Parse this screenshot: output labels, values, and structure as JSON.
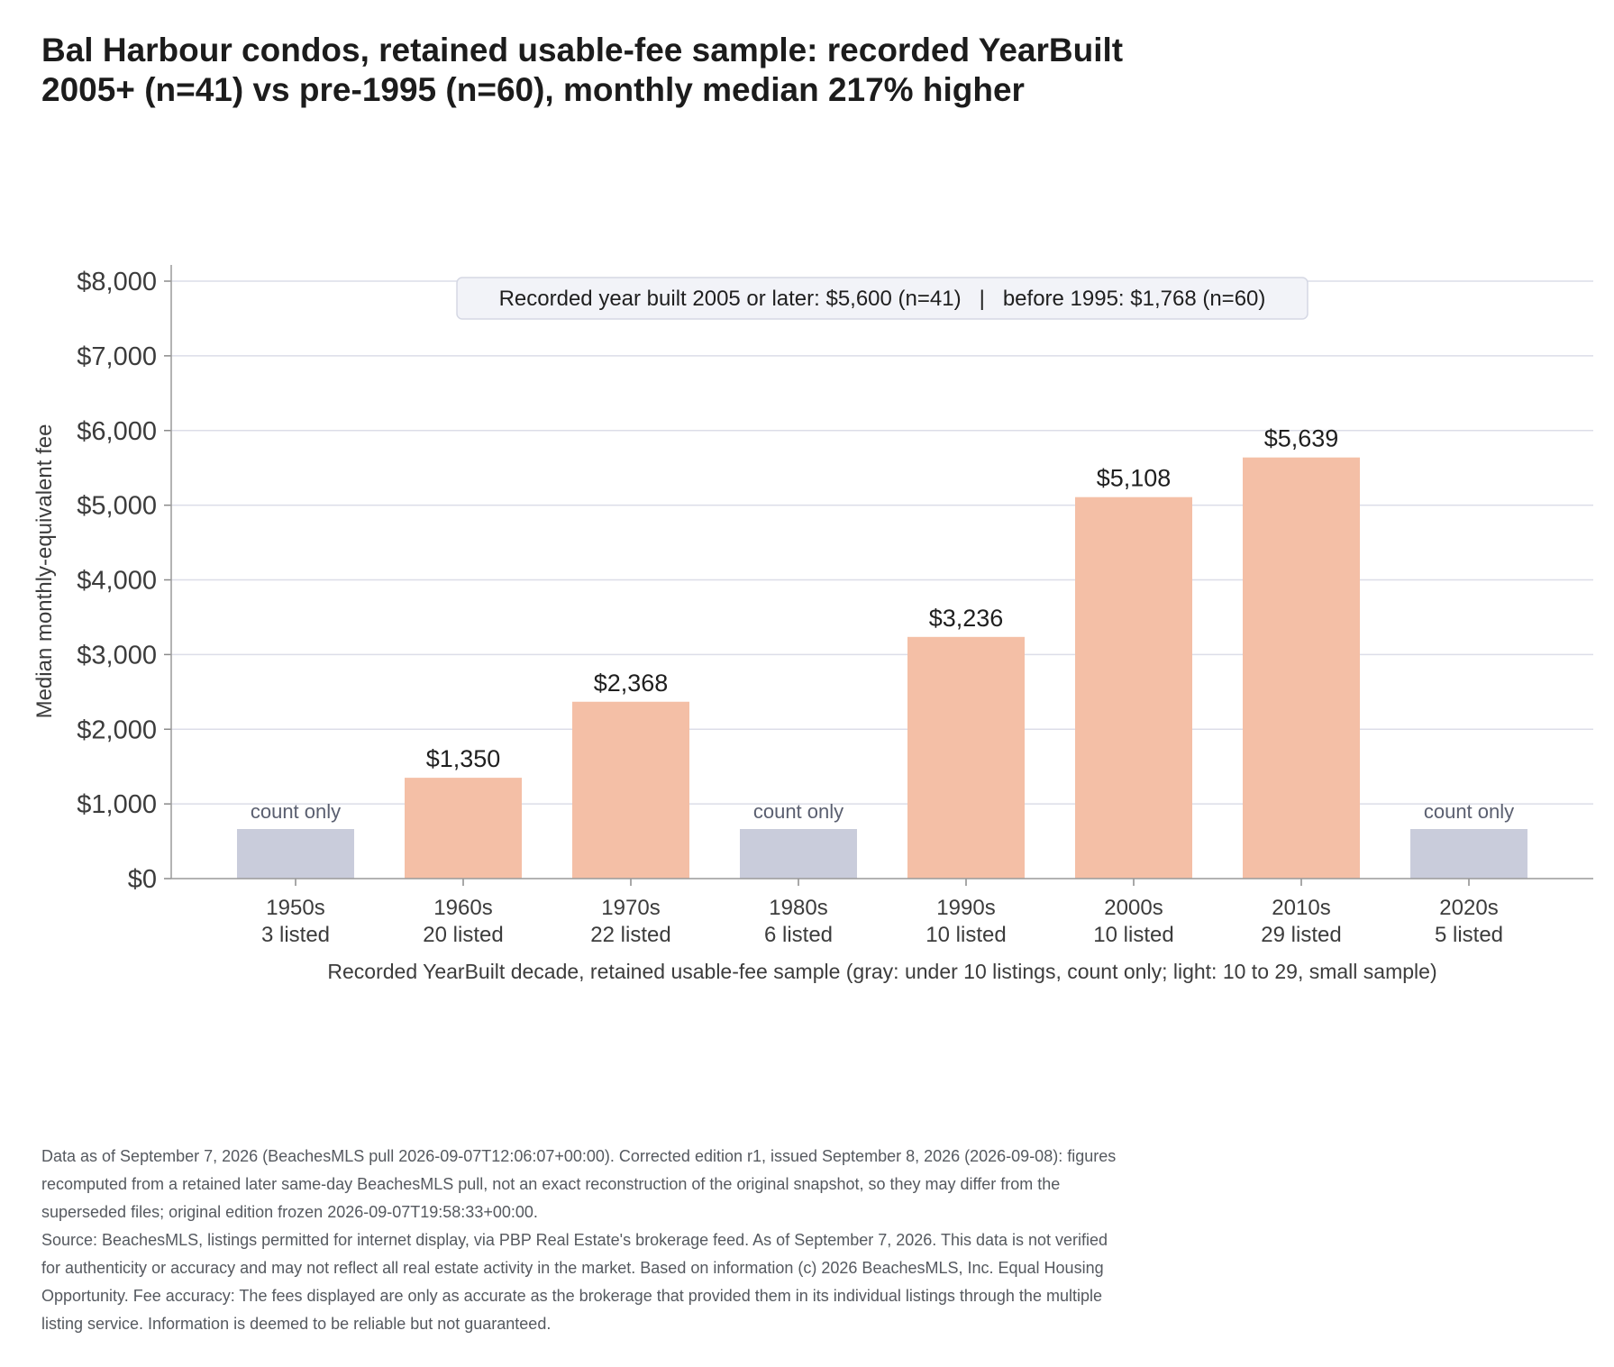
{
  "title": {
    "line1": "Bal Harbour condos, retained usable-fee sample: recorded YearBuilt",
    "line2": "2005+ (n=41) vs pre-1995 (n=60), monthly median 217% higher"
  },
  "summary_box": "Recorded year built 2005 or later: $5,600 (n=41)   |   before 1995: $1,768 (n=60)",
  "chart_data": {
    "type": "bar",
    "title": "Bal Harbour condos, retained usable-fee sample: recorded YearBuilt 2005+ (n=41) vs pre-1995 (n=60), monthly median 217% higher",
    "xlabel": "Recorded YearBuilt decade, retained usable-fee sample (gray: under 10 listings, count only; light: 10 to 29, small sample)",
    "ylabel": "Median monthly-equivalent fee",
    "ylim": [
      0,
      8000
    ],
    "yticks": [
      0,
      1000,
      2000,
      3000,
      4000,
      5000,
      6000,
      7000,
      8000
    ],
    "ytick_labels": [
      "$0",
      "$1,000",
      "$2,000",
      "$3,000",
      "$4,000",
      "$5,000",
      "$6,000",
      "$7,000",
      "$8,000"
    ],
    "grid": "horizontal",
    "categories": [
      "1950s",
      "1960s",
      "1970s",
      "1980s",
      "1990s",
      "2000s",
      "2010s",
      "2020s"
    ],
    "counts": [
      "3 listed",
      "20 listed",
      "22 listed",
      "6 listed",
      "10 listed",
      "10 listed",
      "29 listed",
      "5 listed"
    ],
    "values": [
      null,
      1350,
      2368,
      null,
      3236,
      5108,
      5639,
      null
    ],
    "value_labels": [
      "count only",
      "$1,350",
      "$2,368",
      "count only",
      "$3,236",
      "$5,108",
      "$5,639",
      "count only"
    ],
    "count_only": [
      true,
      false,
      false,
      true,
      false,
      false,
      false,
      true
    ],
    "colors": {
      "measured": "#f4bfa6",
      "count_only": "#c9ccdb",
      "grid": "#dcdde8",
      "axis": "#8a8a8a"
    }
  },
  "footnote": {
    "lines": [
      "Data as of September 7, 2026 (BeachesMLS pull 2026-09-07T12:06:07+00:00). Corrected edition r1, issued September 8, 2026 (2026-09-08): figures",
      "recomputed from a retained later same-day BeachesMLS pull, not an exact reconstruction of the original snapshot, so they may differ from the",
      "superseded files; original edition frozen 2026-09-07T19:58:33+00:00.",
      "Source: BeachesMLS, listings permitted for internet display, via PBP Real Estate's brokerage feed. As of September 7, 2026. This data is not verified",
      "for authenticity or accuracy and may not reflect all real estate activity in the market. Based on information (c) 2026 BeachesMLS, Inc. Equal Housing",
      "Opportunity. Fee accuracy: The fees displayed are only as accurate as the brokerage that provided them in its individual listings through the multiple",
      "listing service. Information is deemed to be reliable but not guaranteed."
    ]
  }
}
